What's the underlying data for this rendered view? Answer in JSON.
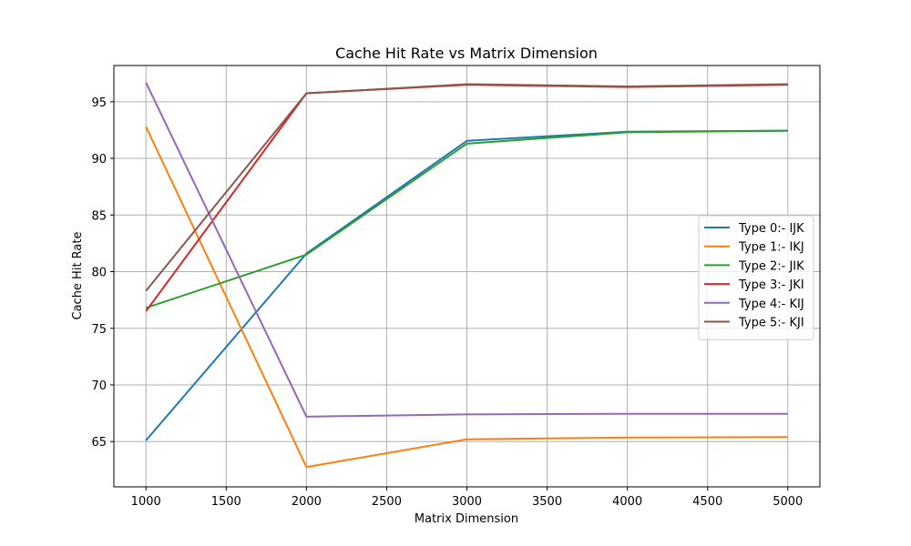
{
  "chart_data": {
    "type": "line",
    "title": "Cache Hit Rate vs Matrix Dimension",
    "xlabel": "Matrix Dimension",
    "ylabel": "Cache Hit Rate",
    "x": [
      1000,
      2000,
      3000,
      4000,
      5000
    ],
    "xlim": [
      800,
      5200
    ],
    "ylim": [
      61.0,
      98.2
    ],
    "xticks": [
      1000,
      1500,
      2000,
      2500,
      3000,
      3500,
      4000,
      4500,
      5000
    ],
    "yticks": [
      65,
      70,
      75,
      80,
      85,
      90,
      95
    ],
    "grid": true,
    "legend_position": "center-right",
    "series": [
      {
        "name": "Type 0:- IJK",
        "color": "#1f77b4",
        "values": [
          65.1,
          81.6,
          91.55,
          92.35,
          92.45
        ]
      },
      {
        "name": "Type 1:- IKJ",
        "color": "#ff7f0e",
        "values": [
          92.8,
          62.75,
          65.2,
          65.35,
          65.4
        ]
      },
      {
        "name": "Type 2:- JIK",
        "color": "#2ca02c",
        "values": [
          76.8,
          81.5,
          91.3,
          92.3,
          92.45
        ]
      },
      {
        "name": "Type 3:- JKI",
        "color": "#d62728",
        "values": [
          76.5,
          95.75,
          96.5,
          96.3,
          96.5
        ]
      },
      {
        "name": "Type 4:- KIJ",
        "color": "#9467bd",
        "values": [
          96.7,
          67.2,
          67.4,
          67.45,
          67.45
        ]
      },
      {
        "name": "Type 5:- KJI",
        "color": "#8c564b",
        "values": [
          78.3,
          95.75,
          96.55,
          96.35,
          96.55
        ]
      }
    ]
  }
}
